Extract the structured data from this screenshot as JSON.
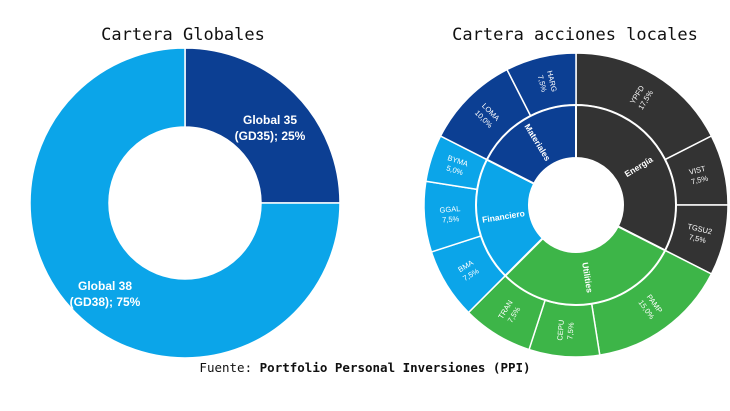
{
  "chart_data": [
    {
      "type": "pie",
      "title": "Cartera Globales",
      "slices": [
        {
          "label_line1": "Global 35",
          "label_line2": "(GD35); 25%",
          "value": 25,
          "color": "#0C3F93"
        },
        {
          "label_line1": "Global 38",
          "label_line2": "(GD38); 75%",
          "value": 75,
          "color": "#0BA5E9"
        }
      ]
    },
    {
      "type": "pie",
      "title": "Cartera acciones locales",
      "inner": [
        {
          "label": "Energía",
          "value": 32.5,
          "color": "#333333"
        },
        {
          "label": "Utilities",
          "value": 30,
          "color": "#3DB548"
        },
        {
          "label": "Financiero",
          "value": 20,
          "color": "#0BA5E9"
        },
        {
          "label": "Materiales",
          "value": 17.5,
          "color": "#0C3F93"
        }
      ],
      "outer": [
        {
          "name": "YPFD",
          "pct": "17,5%",
          "value": 17.5,
          "color": "#333333"
        },
        {
          "name": "VIST",
          "pct": "7,5%",
          "value": 7.5,
          "color": "#333333"
        },
        {
          "name": "TGSU2",
          "pct": "7,5%",
          "value": 7.5,
          "color": "#333333"
        },
        {
          "name": "PAMP",
          "pct": "15,0%",
          "value": 15,
          "color": "#3DB548"
        },
        {
          "name": "CEPU",
          "pct": "7,5%",
          "value": 7.5,
          "color": "#3DB548"
        },
        {
          "name": "TRAN",
          "pct": "7,5%",
          "value": 7.5,
          "color": "#3DB548"
        },
        {
          "name": "BMA",
          "pct": "7,5%",
          "value": 7.5,
          "color": "#0BA5E9"
        },
        {
          "name": "GGAL",
          "pct": "7,5%",
          "value": 7.5,
          "color": "#0BA5E9"
        },
        {
          "name": "BYMA",
          "pct": "5,0%",
          "value": 5,
          "color": "#0BA5E9"
        },
        {
          "name": "LOMA",
          "pct": "10,0%",
          "value": 10,
          "color": "#0C3F93"
        },
        {
          "name": "HARG",
          "pct": "7,5%",
          "value": 7.5,
          "color": "#0C3F93"
        }
      ]
    }
  ],
  "source": {
    "prefix": "Fuente: ",
    "name": "Portfolio Personal Inversiones (PPI)"
  }
}
